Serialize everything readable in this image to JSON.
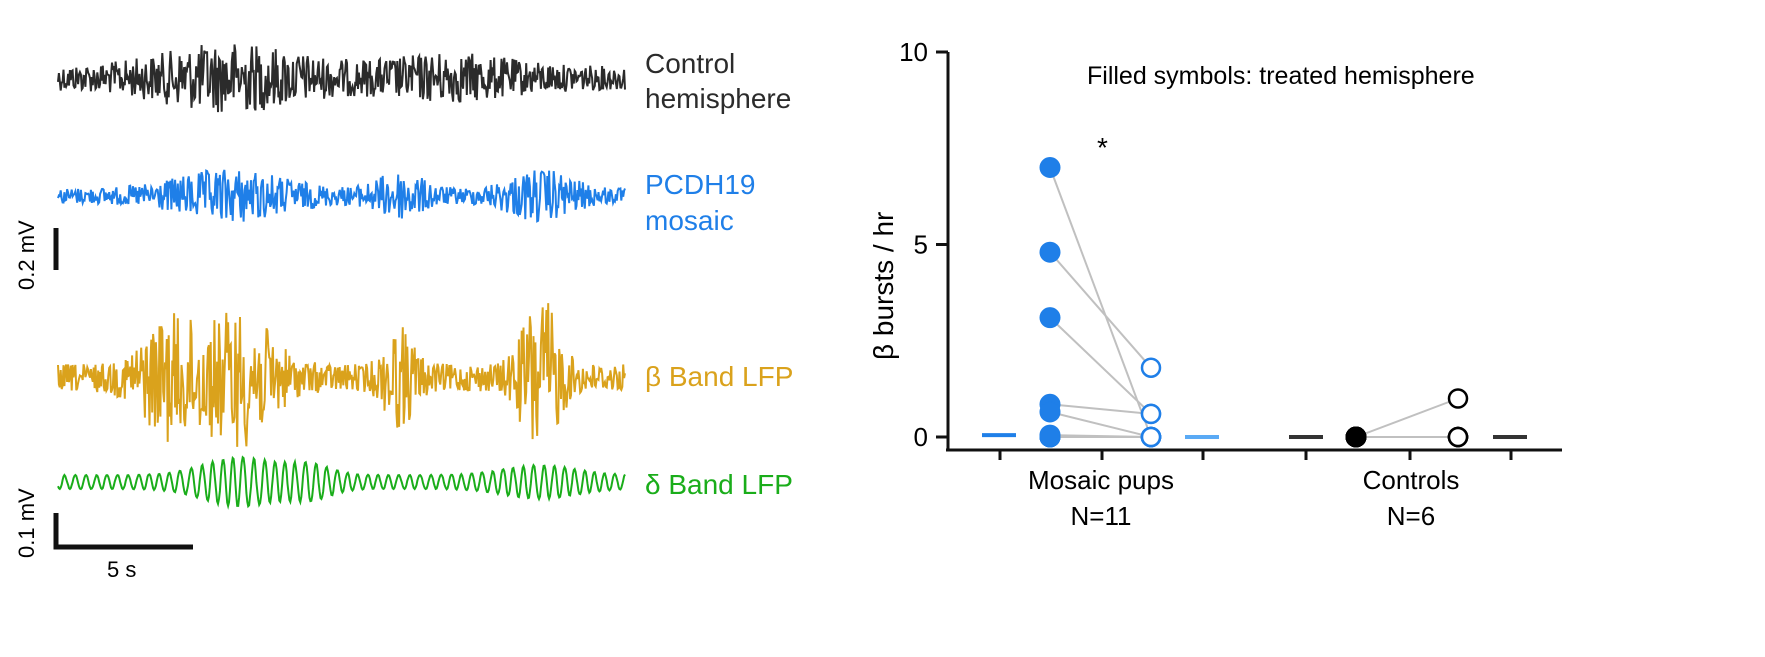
{
  "colors": {
    "control": "#2b2b2b",
    "mosaic": "#1f7fe8",
    "mosaic_light": "#5aaaf5",
    "beta": "#daa21c",
    "delta": "#1aad1a",
    "line": "#c0c0c0",
    "axis": "#111111"
  },
  "traces": [
    {
      "label_lines": [
        "Control",
        "hemisphere"
      ],
      "color": "#2b2b2b"
    },
    {
      "label_lines": [
        "PCDH19",
        "mosaic"
      ],
      "color": "#1f7fe8"
    },
    {
      "label_lines": [
        "β Band LFP"
      ],
      "color": "#daa21c"
    },
    {
      "label_lines": [
        "δ Band LFP"
      ],
      "color": "#1aad1a"
    }
  ],
  "scale_bars": {
    "upper_v": "0.2 mV",
    "lower_v": "0.1 mV",
    "time": "5 s"
  },
  "chart_data": {
    "type": "scatter",
    "title": "",
    "annotation": "Filled symbols: treated hemisphere",
    "significance": "*",
    "ylabel": "β bursts / hr",
    "ylim": [
      0,
      10
    ],
    "yticks": [
      0,
      5,
      10
    ],
    "groups": [
      {
        "name": "Mosaic pups",
        "n_label": "N=11",
        "treated": [
          7.0,
          4.8,
          3.1,
          0.85,
          0.65,
          0.05,
          0.0,
          0.0,
          0.0,
          0.0,
          0.0
        ],
        "untreated": [
          0.0,
          1.8,
          0.6,
          0.6,
          0.0,
          0.0,
          0.0,
          0.0,
          0.0,
          0.0,
          0.0
        ],
        "treated_median": 0.05,
        "untreated_median": 0.0
      },
      {
        "name": "Controls",
        "n_label": "N=6",
        "treated": [
          0.0,
          0.0,
          0.0,
          0.0,
          0.0,
          0.0
        ],
        "untreated": [
          1.0,
          0.0,
          0.0,
          0.0,
          0.0,
          0.0
        ],
        "treated_median": 0.0,
        "untreated_median": 0.0
      }
    ]
  }
}
